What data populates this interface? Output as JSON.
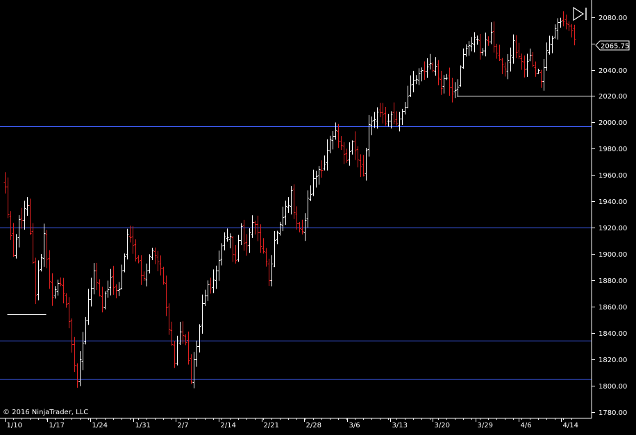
{
  "copyright": "© 2016 NinjaTrader, LLC",
  "last_price": "2065.75",
  "colors": {
    "background": "#000000",
    "up_bar": "#ffffff",
    "down_bar": "#e02020",
    "horizontal_line": "#4060ff",
    "marker_line": "#ffffff",
    "axis": "#ffffff"
  },
  "icons": {
    "scroll_to_end": "scroll-to-end-icon"
  },
  "chart_data": {
    "type": "ohlc",
    "title": "",
    "xlabel": "",
    "ylabel": "",
    "ylim": [
      1775,
      2093
    ],
    "y_ticks": [
      1780,
      1800,
      1820,
      1840,
      1860,
      1880,
      1900,
      1920,
      1940,
      1960,
      1980,
      2000,
      2020,
      2040,
      2060,
      2080
    ],
    "x_ticks": [
      "1/10",
      "1/17",
      "1/24",
      "1/31",
      "2/7",
      "2/14",
      "2/21",
      "2/28",
      "3/6",
      "3/13",
      "3/20",
      "3/29",
      "4/6",
      "4/14"
    ],
    "anchors": [
      [
        0,
        1950
      ],
      [
        3,
        1895
      ],
      [
        5,
        1925
      ],
      [
        8,
        1935
      ],
      [
        11,
        1870
      ],
      [
        14,
        1915
      ],
      [
        17,
        1865
      ],
      [
        20,
        1880
      ],
      [
        23,
        1850
      ],
      [
        26,
        1800
      ],
      [
        29,
        1850
      ],
      [
        32,
        1890
      ],
      [
        35,
        1860
      ],
      [
        38,
        1880
      ],
      [
        41,
        1870
      ],
      [
        44,
        1915
      ],
      [
        47,
        1900
      ],
      [
        50,
        1880
      ],
      [
        53,
        1905
      ],
      [
        56,
        1890
      ],
      [
        58,
        1860
      ],
      [
        61,
        1820
      ],
      [
        63,
        1845
      ],
      [
        65,
        1835
      ],
      [
        67,
        1805
      ],
      [
        69,
        1830
      ],
      [
        71,
        1860
      ],
      [
        73,
        1875
      ],
      [
        75,
        1880
      ],
      [
        77,
        1895
      ],
      [
        79,
        1915
      ],
      [
        81,
        1910
      ],
      [
        83,
        1895
      ],
      [
        85,
        1920
      ],
      [
        87,
        1905
      ],
      [
        89,
        1925
      ],
      [
        91,
        1915
      ],
      [
        93,
        1900
      ],
      [
        95,
        1880
      ],
      [
        97,
        1910
      ],
      [
        99,
        1920
      ],
      [
        101,
        1935
      ],
      [
        103,
        1945
      ],
      [
        105,
        1925
      ],
      [
        107,
        1915
      ],
      [
        109,
        1940
      ],
      [
        111,
        1955
      ],
      [
        113,
        1965
      ],
      [
        115,
        1970
      ],
      [
        117,
        1985
      ],
      [
        119,
        1990
      ],
      [
        121,
        1980
      ],
      [
        123,
        1975
      ],
      [
        125,
        1985
      ],
      [
        127,
        1970
      ],
      [
        129,
        1960
      ],
      [
        131,
        1995
      ],
      [
        133,
        2005
      ],
      [
        135,
        2010
      ],
      [
        137,
        2000
      ],
      [
        139,
        2005
      ],
      [
        141,
        2000
      ],
      [
        143,
        2010
      ],
      [
        145,
        2020
      ],
      [
        147,
        2030
      ],
      [
        149,
        2035
      ],
      [
        151,
        2040
      ],
      [
        153,
        2045
      ],
      [
        155,
        2040
      ],
      [
        157,
        2030
      ],
      [
        159,
        2035
      ],
      [
        161,
        2025
      ],
      [
        163,
        2030
      ],
      [
        165,
        2050
      ],
      [
        167,
        2060
      ],
      [
        169,
        2065
      ],
      [
        171,
        2055
      ],
      [
        173,
        2060
      ],
      [
        175,
        2065
      ],
      [
        177,
        2055
      ],
      [
        179,
        2040
      ],
      [
        181,
        2045
      ],
      [
        183,
        2060
      ],
      [
        185,
        2050
      ],
      [
        187,
        2040
      ],
      [
        189,
        2050
      ],
      [
        191,
        2040
      ],
      [
        193,
        2035
      ],
      [
        195,
        2055
      ],
      [
        197,
        2065
      ],
      [
        199,
        2075
      ],
      [
        201,
        2078
      ],
      [
        203,
        2074
      ],
      [
        205,
        2065
      ]
    ],
    "horizontal_lines": [
      1997,
      1920,
      1834,
      1805
    ],
    "marker_segments": [
      {
        "y": 1854,
        "from_bar": 1,
        "to_bar": 15
      },
      {
        "y": 2020,
        "from_bar": 163,
        "to_bar": 212
      }
    ]
  }
}
